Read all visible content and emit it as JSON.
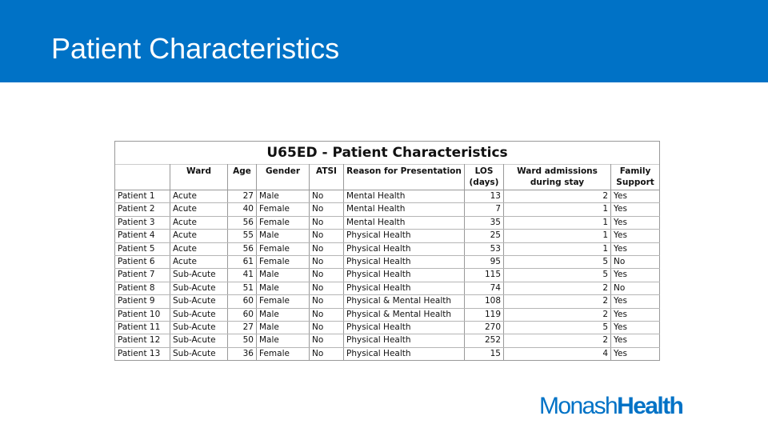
{
  "slide": {
    "title": "Patient Characteristics",
    "colors": {
      "header_band": "#0072c6",
      "logo": "#0072c6"
    }
  },
  "table": {
    "caption": "U65ED - Patient Characteristics",
    "headers": [
      "",
      "Ward",
      "Age",
      "Gender",
      "ATSI",
      "Reason for Presentation",
      "LOS (days)",
      "Ward admissions during stay",
      "Family Support"
    ],
    "rows": [
      [
        "Patient 1",
        "Acute",
        "27",
        "Male",
        "No",
        "Mental Health",
        "13",
        "2",
        "Yes"
      ],
      [
        "Patient 2",
        "Acute",
        "40",
        "Female",
        "No",
        "Mental Health",
        "7",
        "1",
        "Yes"
      ],
      [
        "Patient 3",
        "Acute",
        "56",
        "Female",
        "No",
        "Mental Health",
        "35",
        "1",
        "Yes"
      ],
      [
        "Patient 4",
        "Acute",
        "55",
        "Male",
        "No",
        "Physical Health",
        "25",
        "1",
        "Yes"
      ],
      [
        "Patient 5",
        "Acute",
        "56",
        "Female",
        "No",
        "Physical Health",
        "53",
        "1",
        "Yes"
      ],
      [
        "Patient 6",
        "Acute",
        "61",
        "Female",
        "No",
        "Physical Health",
        "95",
        "5",
        "No"
      ],
      [
        "Patient 7",
        "Sub-Acute",
        "41",
        "Male",
        "No",
        "Physical Health",
        "115",
        "5",
        "Yes"
      ],
      [
        "Patient 8",
        "Sub-Acute",
        "51",
        "Male",
        "No",
        "Physical Health",
        "74",
        "2",
        "No"
      ],
      [
        "Patient 9",
        "Sub-Acute",
        "60",
        "Female",
        "No",
        "Physical & Mental Health",
        "108",
        "2",
        "Yes"
      ],
      [
        "Patient 10",
        "Sub-Acute",
        "60",
        "Male",
        "No",
        "Physical & Mental Health",
        "119",
        "2",
        "Yes"
      ],
      [
        "Patient 11",
        "Sub-Acute",
        "27",
        "Male",
        "No",
        "Physical Health",
        "270",
        "5",
        "Yes"
      ],
      [
        "Patient 12",
        "Sub-Acute",
        "50",
        "Male",
        "No",
        "Physical Health",
        "252",
        "2",
        "Yes"
      ],
      [
        "Patient 13",
        "Sub-Acute",
        "36",
        "Female",
        "No",
        "Physical Health",
        "15",
        "4",
        "Yes"
      ]
    ]
  },
  "logo": {
    "part1": "Monash",
    "part2": "Health"
  }
}
